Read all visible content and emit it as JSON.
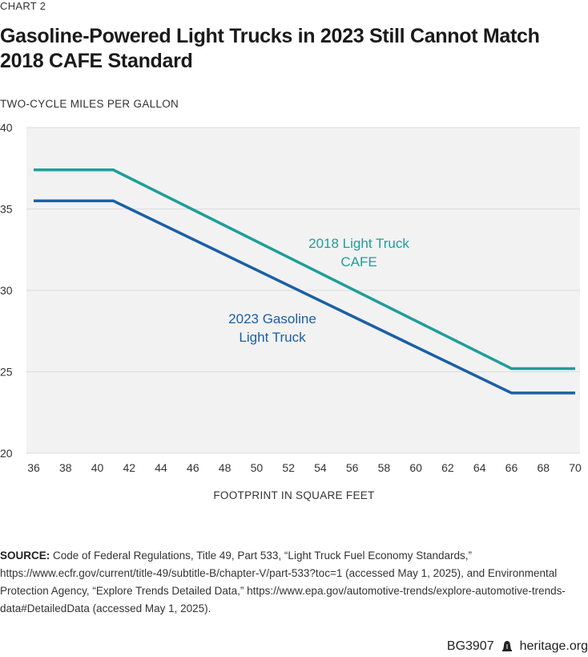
{
  "chart_label": "CHART 2",
  "chart_data": {
    "type": "line",
    "title": "Gasoline-Powered Light Trucks in 2023 Still Cannot Match 2018 CAFE Standard",
    "ylabel": "TWO-CYCLE MILES PER GALLON",
    "xlabel": "FOOTPRINT IN SQUARE FEET",
    "xlim": [
      36,
      70
    ],
    "ylim": [
      20,
      40
    ],
    "xticks": [
      36,
      38,
      40,
      42,
      44,
      46,
      48,
      50,
      52,
      54,
      56,
      58,
      60,
      62,
      64,
      66,
      68,
      70
    ],
    "yticks": [
      20,
      25,
      30,
      35,
      40
    ],
    "grid": true,
    "series": [
      {
        "name": "2018 Light Truck CAFE",
        "label_lines": [
          "2018 Light Truck",
          "CAFE"
        ],
        "color": "#1f9e9a",
        "x": [
          36,
          41,
          66,
          70
        ],
        "y": [
          37.4,
          37.4,
          25.2,
          25.2
        ]
      },
      {
        "name": "2023 Gasoline Light Truck",
        "label_lines": [
          "2023 Gasoline",
          "Light Truck"
        ],
        "color": "#1a5fa6",
        "x": [
          36,
          41,
          66,
          70
        ],
        "y": [
          35.5,
          35.5,
          23.7,
          23.7
        ]
      }
    ]
  },
  "source": {
    "label": "SOURCE:",
    "text": " Code of Federal Regulations, Title 49, Part 533, “Light Truck Fuel Economy Standards,” https://www.ecfr.gov/current/title-49/subtitle-B/chapter-V/part-533?toc=1 (accessed May 1, 2025), and Environmental Protection Agency, “Explore Trends Detailed Data,” https://www.epa.gov/automotive-trends/explore-automotive-trends-data#DetailedData (accessed May 1, 2025)."
  },
  "footer": {
    "code": "BG3907",
    "icon": "liberty-bell-icon",
    "site": "heritage.org"
  }
}
